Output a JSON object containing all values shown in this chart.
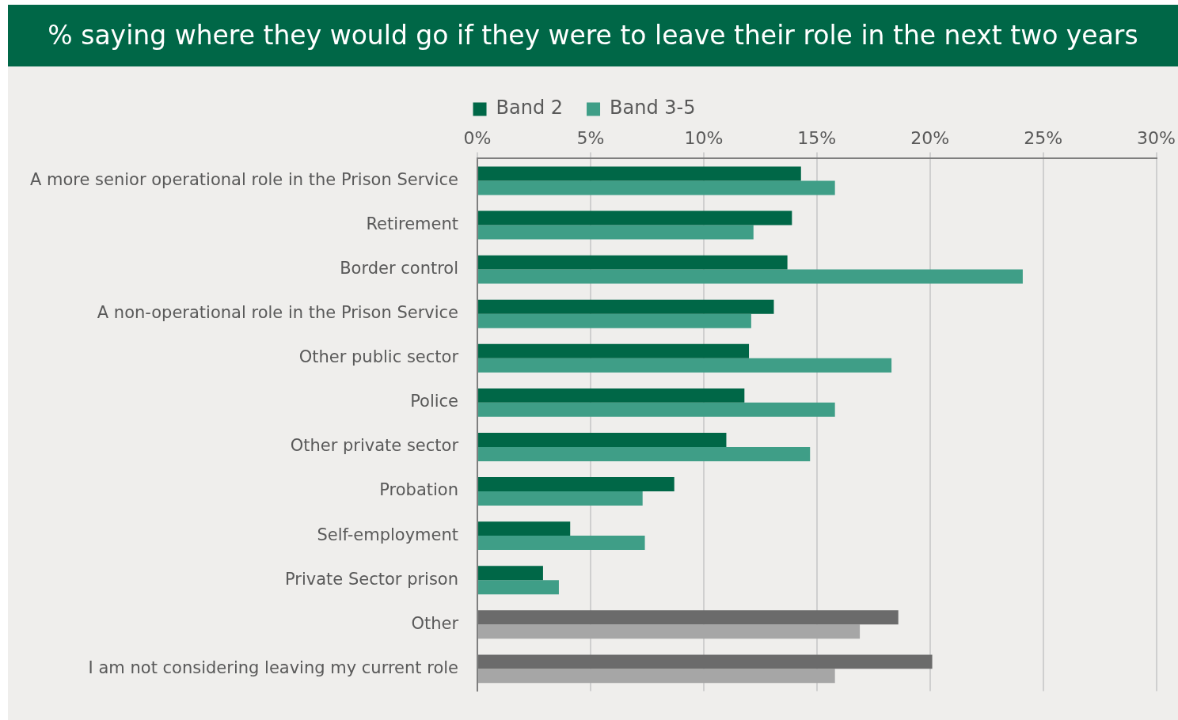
{
  "chart_data": {
    "type": "bar",
    "orientation": "horizontal",
    "title": "% saying where they would go if they were to leave their role in the next two years",
    "categories": [
      "A more senior operational role in the Prison Service",
      "Retirement",
      "Border control",
      "A non-operational role in the Prison Service",
      "Other public sector",
      "Police",
      "Other private sector",
      "Probation",
      "Self-employment",
      "Private Sector prison",
      "Other",
      "I am not considering leaving my current role"
    ],
    "series": [
      {
        "name": "Band 2",
        "color": "#006747",
        "colors": [
          "#006747",
          "#006747",
          "#006747",
          "#006747",
          "#006747",
          "#006747",
          "#006747",
          "#006747",
          "#006747",
          "#006747",
          "#6b6b6b",
          "#6b6b6b"
        ],
        "values": [
          14.3,
          13.9,
          13.7,
          13.1,
          12.0,
          11.8,
          11.0,
          8.7,
          4.1,
          2.9,
          18.6,
          20.1
        ]
      },
      {
        "name": "Band 3-5",
        "color": "#3f9e87",
        "colors": [
          "#3f9e87",
          "#3f9e87",
          "#3f9e87",
          "#3f9e87",
          "#3f9e87",
          "#3f9e87",
          "#3f9e87",
          "#3f9e87",
          "#3f9e87",
          "#3f9e87",
          "#a6a6a6",
          "#a6a6a6"
        ],
        "values": [
          15.8,
          12.2,
          24.1,
          12.1,
          18.3,
          15.8,
          14.7,
          7.3,
          7.4,
          3.6,
          16.9,
          15.8
        ]
      }
    ],
    "xlim": [
      0,
      30
    ],
    "xticks": [
      {
        "value": 0,
        "label": "0%"
      },
      {
        "value": 5,
        "label": "5%"
      },
      {
        "value": 10,
        "label": "10%"
      },
      {
        "value": 15,
        "label": "15%"
      },
      {
        "value": 20,
        "label": "20%"
      },
      {
        "value": 25,
        "label": "25%"
      },
      {
        "value": 30,
        "label": "30%"
      }
    ],
    "grid": "x",
    "legend": "top"
  }
}
